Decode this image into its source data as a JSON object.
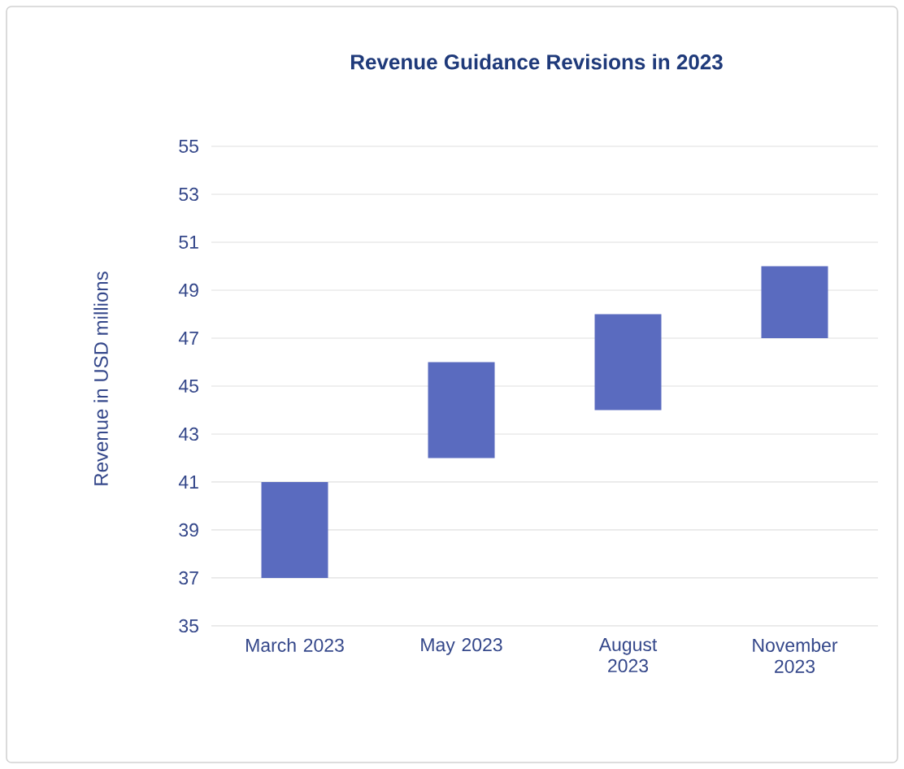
{
  "chart_data": {
    "type": "bar",
    "title": "Revenue Guidance Revisions in 2023",
    "ylabel": "Revenue in USD millions",
    "categories": [
      "March 2023",
      "May 2023",
      "August 2023",
      "November 2023"
    ],
    "base": [
      37,
      42,
      44,
      47
    ],
    "values": [
      4,
      4,
      4,
      3
    ],
    "color": "#5a6bbf",
    "ylim": [
      35,
      55
    ],
    "yticks": [
      35,
      37,
      39,
      41,
      43,
      45,
      47,
      49,
      51,
      53,
      55
    ],
    "grid": "y"
  }
}
